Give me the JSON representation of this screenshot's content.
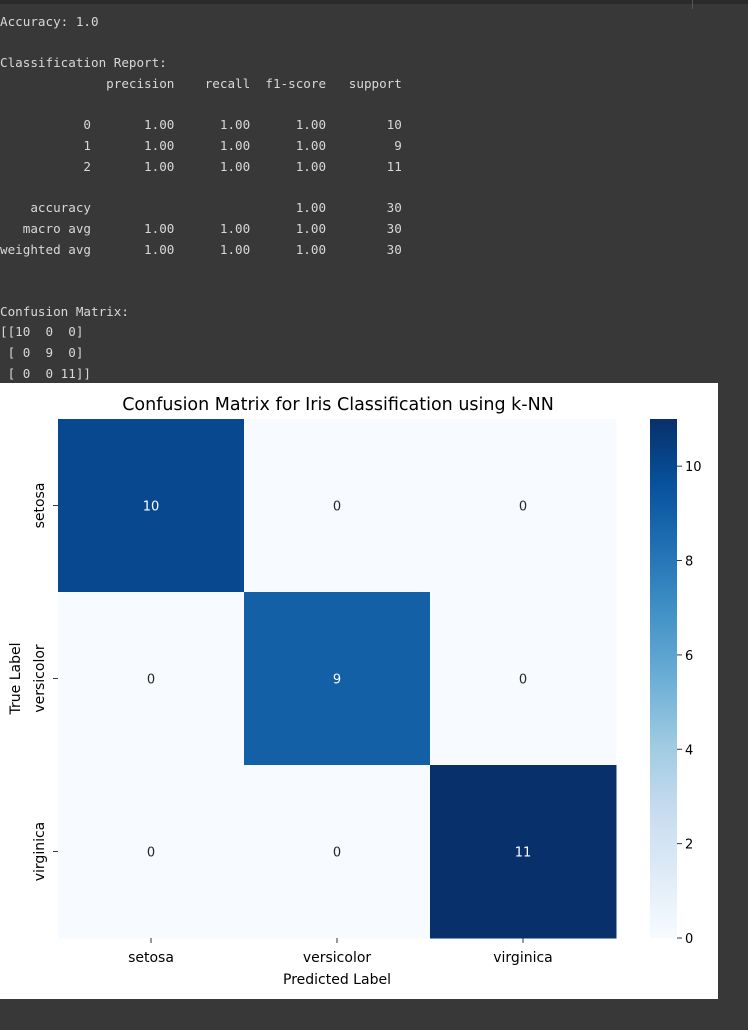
{
  "console": {
    "lines": [
      "Accuracy: 1.0",
      "",
      "Classification Report:",
      "              precision    recall  f1-score   support",
      "",
      "           0       1.00      1.00      1.00        10",
      "           1       1.00      1.00      1.00         9",
      "           2       1.00      1.00      1.00        11",
      "",
      "    accuracy                           1.00        30",
      "   macro avg       1.00      1.00      1.00        30",
      "weighted avg       1.00      1.00      1.00        30",
      "",
      "",
      "Confusion Matrix:",
      "[[10  0  0]",
      " [ 0  9  0]",
      " [ 0  0 11]]"
    ]
  },
  "chart_data": {
    "type": "heatmap",
    "title": "Confusion Matrix for Iris Classification using k-NN",
    "xlabel": "Predicted Label",
    "ylabel": "True Label",
    "x_categories": [
      "setosa",
      "versicolor",
      "virginica"
    ],
    "y_categories": [
      "setosa",
      "versicolor",
      "virginica"
    ],
    "values": [
      [
        10,
        0,
        0
      ],
      [
        0,
        9,
        0
      ],
      [
        0,
        0,
        11
      ]
    ],
    "annotations": true,
    "colormap": "Blues",
    "vmin": 0,
    "vmax": 11,
    "colorbar_ticks": [
      0,
      2,
      4,
      6,
      8,
      10
    ],
    "colors": {
      "min": "#f7fbff",
      "max": "#08306b",
      "text_light": "#ffffff",
      "text_dark": "#262626"
    }
  }
}
